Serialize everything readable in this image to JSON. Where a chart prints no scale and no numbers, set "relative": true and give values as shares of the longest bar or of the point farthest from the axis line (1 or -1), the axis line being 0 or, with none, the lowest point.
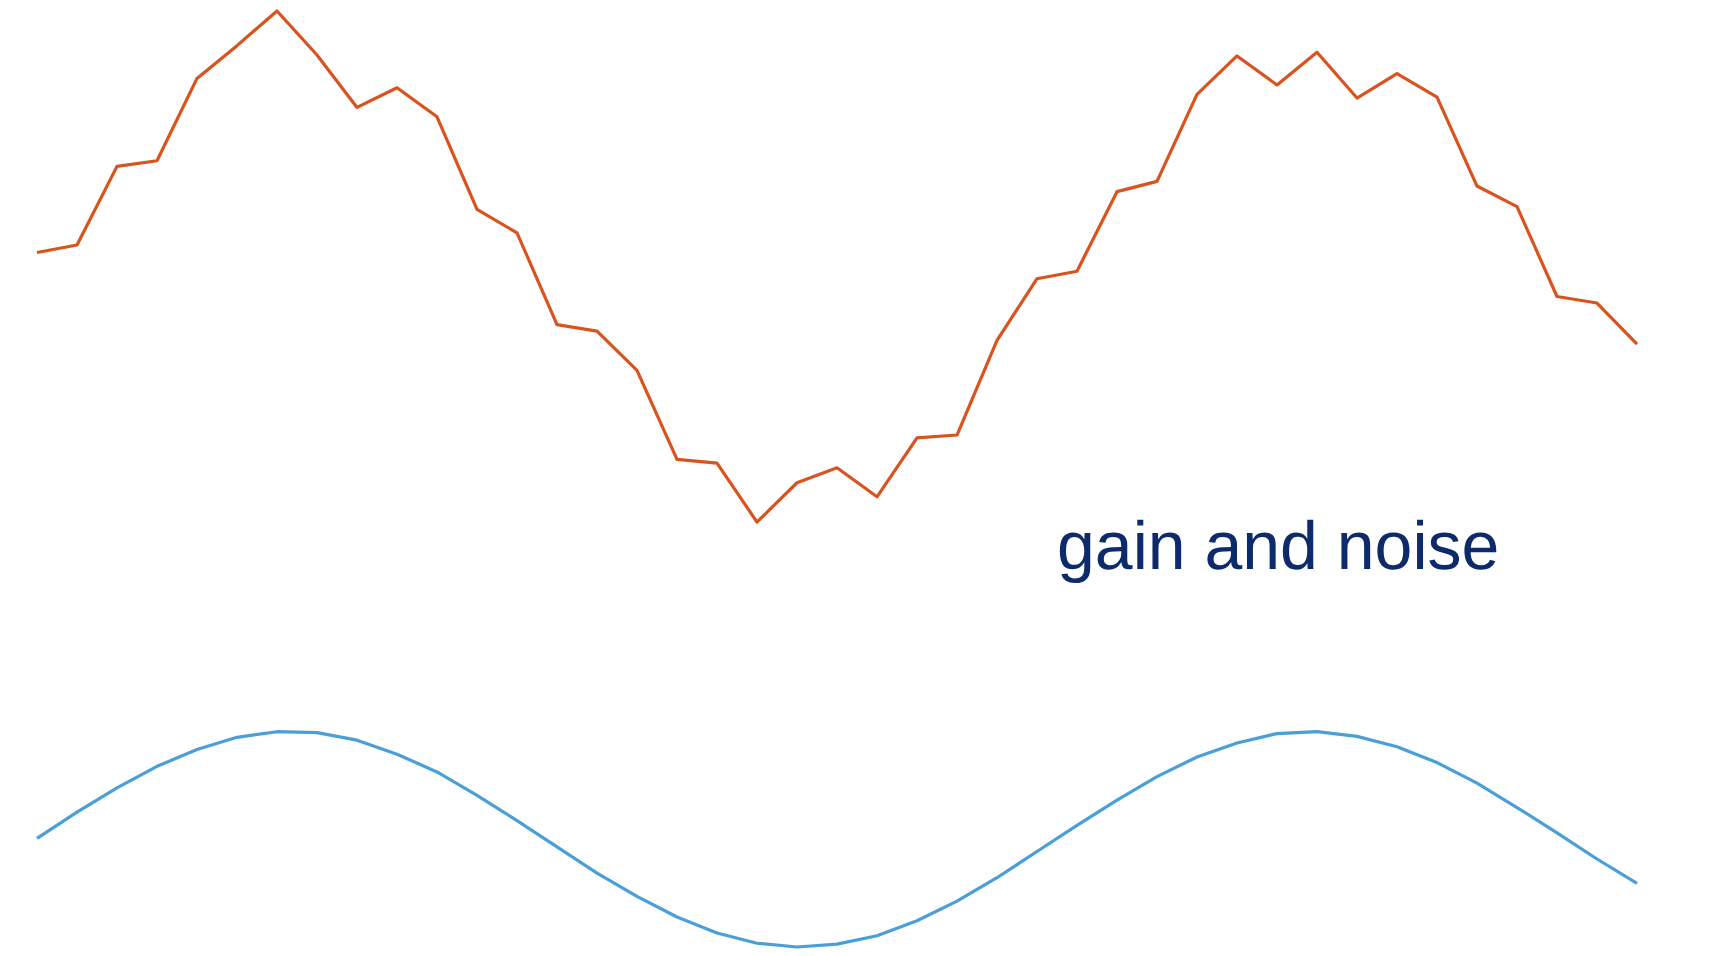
{
  "chart_data": {
    "type": "line",
    "relative": true,
    "categories": [
      null,
      null,
      null,
      null,
      null,
      null,
      null,
      null,
      null,
      null,
      null,
      null,
      null,
      null,
      null,
      null,
      null,
      null,
      null,
      null,
      null,
      null,
      null,
      null,
      null,
      null,
      null,
      null,
      null,
      null,
      null,
      null,
      null,
      null,
      null,
      null,
      null,
      null,
      null,
      null,
      null
    ],
    "series": [
      {
        "color": "#d9531e",
        "values": [
          0.742,
          0.75,
          0.834,
          0.84,
          0.928,
          0.963,
          1.0,
          0.953,
          0.897,
          0.918,
          0.887,
          0.788,
          0.763,
          0.665,
          0.658,
          0.616,
          0.521,
          0.517,
          0.454,
          0.496,
          0.512,
          0.481,
          0.544,
          0.547,
          0.648,
          0.714,
          0.722,
          0.807,
          0.818,
          0.911,
          0.952,
          0.921,
          0.956,
          0.907,
          0.933,
          0.908,
          0.813,
          0.791,
          0.695,
          0.688,
          0.644
        ]
      },
      {
        "color": "#4a9fd8",
        "values": [
          0.116,
          0.144,
          0.17,
          0.193,
          0.211,
          0.224,
          0.23,
          0.229,
          0.221,
          0.206,
          0.187,
          0.162,
          0.135,
          0.107,
          0.079,
          0.054,
          0.032,
          0.015,
          0.004,
          0.0,
          0.003,
          0.012,
          0.028,
          0.049,
          0.074,
          0.102,
          0.13,
          0.157,
          0.182,
          0.203,
          0.218,
          0.228,
          0.23,
          0.225,
          0.214,
          0.197,
          0.175,
          0.149,
          0.122,
          0.094,
          0.068
        ]
      }
    ],
    "annotations": [
      "gain and noise"
    ]
  }
}
